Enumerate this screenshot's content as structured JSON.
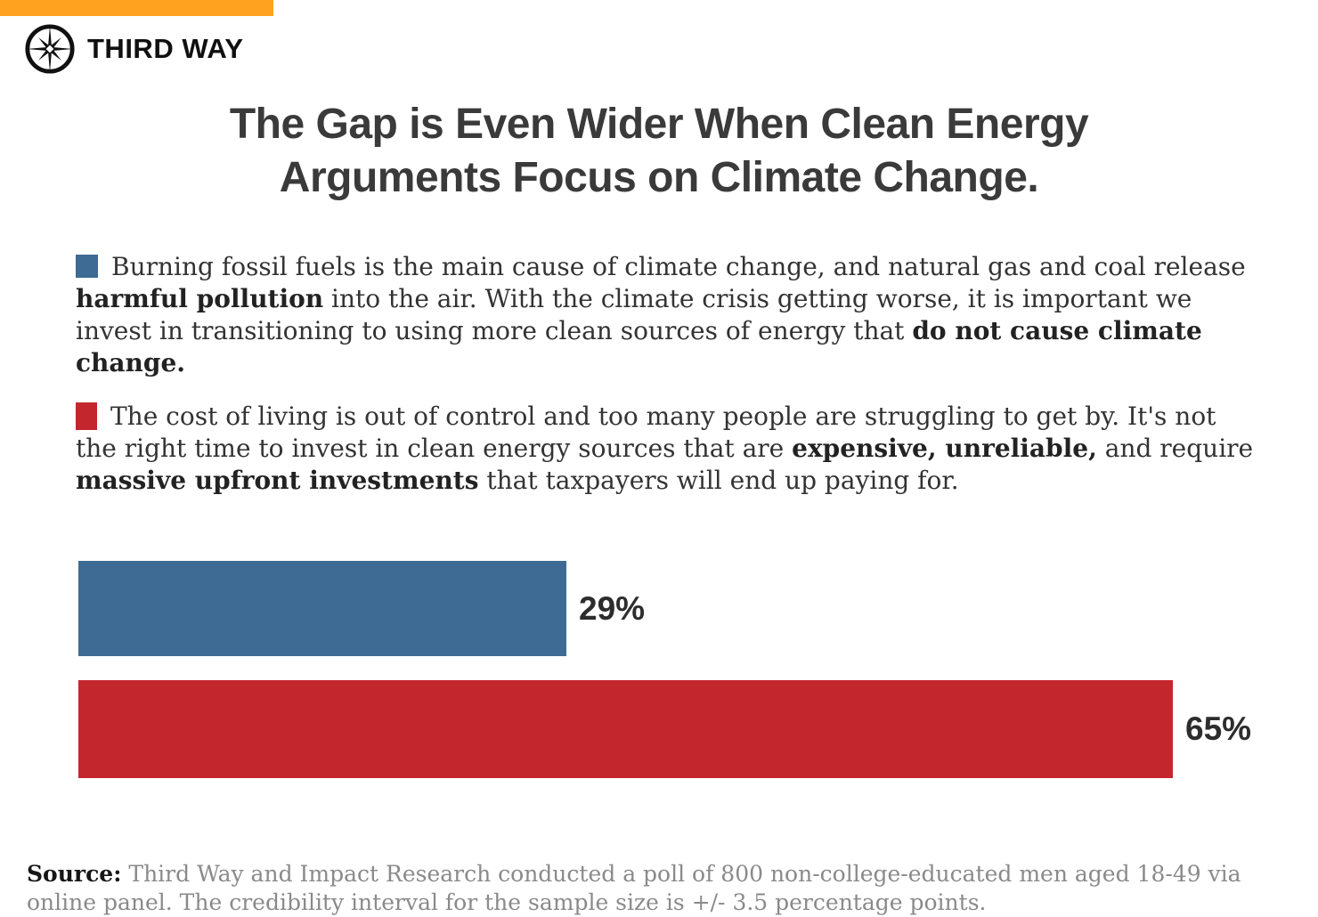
{
  "brand": {
    "name": "THIRD WAY",
    "accent_color": "#FFA21F",
    "logo_color": "#111111"
  },
  "title": {
    "line1": "The Gap is Even Wider When Clean Energy",
    "line2": "Arguments Focus on Climate Change."
  },
  "legend": {
    "clean_energy": {
      "color": "#3E6B94",
      "segments": {
        "s0": "Burning fossil fuels is the main cause of climate change, and natural gas and coal release ",
        "s1": "harmful pollution",
        "s2": " into the air. With the climate crisis getting worse, it is important we invest in transitioning to using more clean sources of energy that ",
        "s3": "do not cause climate change."
      }
    },
    "cost_of_living": {
      "color": "#C4262E",
      "segments": {
        "s0": "The cost of living is out of control and too many people are struggling to get by. It's not the right time to invest in clean energy sources that are ",
        "s1": "expensive, unreliable,",
        "s2": " and require ",
        "s3": "massive upfront investments",
        "s4": " that taxpayers will end up paying for."
      }
    }
  },
  "chart_data": {
    "type": "bar",
    "orientation": "horizontal",
    "series": [
      {
        "name": "clean-energy-climate-argument",
        "value": 29,
        "label": "29%",
        "color": "#3E6B94"
      },
      {
        "name": "cost-of-living-argument",
        "value": 65,
        "label": "65%",
        "color": "#C4262E"
      }
    ],
    "value_range": [
      0,
      70
    ],
    "grid": false,
    "axes_shown": false,
    "data_labels": "outside-end",
    "legend_position": "above-as-paragraphs"
  },
  "source": {
    "label": "Source:",
    "text": "Third Way and Impact Research conducted a poll of 800 non-college-educated men aged 18-49 via online panel. The credibility interval for the sample size is +/- 3.5 percentage points."
  }
}
